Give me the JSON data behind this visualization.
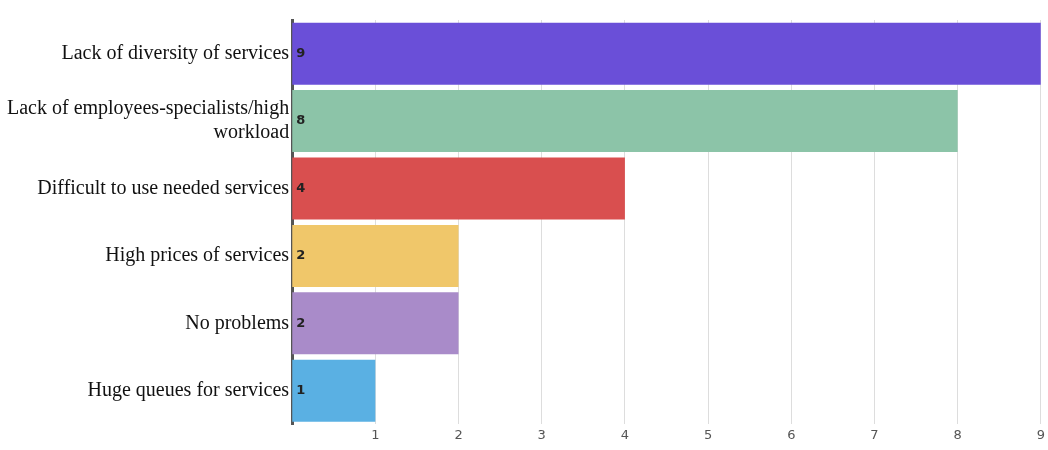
{
  "chart_data": {
    "type": "bar",
    "orientation": "horizontal",
    "categories": [
      "Lack of diversity of services",
      "Lack of employees-specialists/high workload",
      "Difficult to use needed services",
      "High prices of services",
      "No problems",
      "Huge queues for services"
    ],
    "values": [
      9,
      8,
      4,
      2,
      2,
      1
    ],
    "colors": [
      "#6a4fd8",
      "#8cc4a8",
      "#d94f4f",
      "#f0c76a",
      "#a98bc9",
      "#5ab0e3"
    ],
    "xlim": [
      0,
      9
    ],
    "xticks": [
      1,
      2,
      3,
      4,
      5,
      6,
      7,
      8,
      9
    ],
    "grid": "x",
    "data_labels": true
  }
}
